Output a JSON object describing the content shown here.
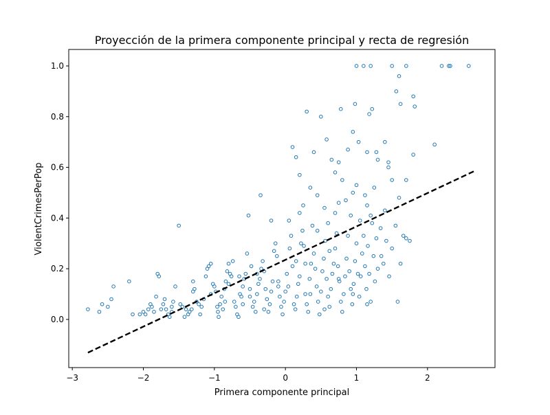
{
  "chart_data": {
    "type": "scatter",
    "title": "Proyección de la primera componente principal y recta de regresión",
    "xlabel": "Primera componente principal",
    "ylabel": "ViolentCrimesPerPop",
    "xlim": [
      -3.05,
      2.95
    ],
    "ylim": [
      -0.19,
      1.065
    ],
    "xticks": [
      -3,
      -2,
      -1,
      0,
      1,
      2
    ],
    "xtick_labels": [
      "−3",
      "−2",
      "−1",
      "0",
      "1",
      "2"
    ],
    "yticks": [
      0.0,
      0.2,
      0.4,
      0.6,
      0.8,
      1.0
    ],
    "ytick_labels": [
      "0.0",
      "0.2",
      "0.4",
      "0.6",
      "0.8",
      "1.0"
    ],
    "grid": false,
    "legend": "none",
    "colors": {
      "points": "#1f77b4",
      "regression_line": "#000000"
    },
    "series": [
      {
        "kind": "scatter",
        "marker": "hollow-circle",
        "points": [
          [
            -2.78,
            0.04
          ],
          [
            -2.62,
            0.03
          ],
          [
            -2.58,
            0.06
          ],
          [
            -2.5,
            0.05
          ],
          [
            -2.45,
            0.08
          ],
          [
            -2.42,
            0.13
          ],
          [
            -2.2,
            0.15
          ],
          [
            -2.15,
            0.02
          ],
          [
            -2.05,
            0.02
          ],
          [
            -2.0,
            0.03
          ],
          [
            -1.97,
            0.02
          ],
          [
            -1.93,
            0.04
          ],
          [
            -1.9,
            0.06
          ],
          [
            -1.88,
            0.05
          ],
          [
            -1.85,
            0.03
          ],
          [
            -1.82,
            0.09
          ],
          [
            -1.8,
            0.18
          ],
          [
            -1.78,
            0.17
          ],
          [
            -1.75,
            0.04
          ],
          [
            -1.72,
            0.06
          ],
          [
            -1.7,
            0.08
          ],
          [
            -1.68,
            0.04
          ],
          [
            -1.65,
            0.02
          ],
          [
            -1.63,
            0.01
          ],
          [
            -1.6,
            0.03
          ],
          [
            -1.58,
            0.07
          ],
          [
            -1.55,
            0.13
          ],
          [
            -1.5,
            0.37
          ],
          [
            -1.48,
            0.06
          ],
          [
            -1.45,
            0.05
          ],
          [
            -1.42,
            0.01
          ],
          [
            -1.4,
            0.04
          ],
          [
            -1.37,
            0.02
          ],
          [
            -1.35,
            0.03
          ],
          [
            -1.32,
            0.04
          ],
          [
            -1.3,
            0.11
          ],
          [
            -1.28,
            0.12
          ],
          [
            -1.25,
            0.07
          ],
          [
            -1.22,
            0.06
          ],
          [
            -1.2,
            0.02
          ],
          [
            -1.18,
            0.05
          ],
          [
            -1.15,
            0.08
          ],
          [
            -1.12,
            0.17
          ],
          [
            -1.1,
            0.2
          ],
          [
            -1.08,
            0.21
          ],
          [
            -1.05,
            0.22
          ],
          [
            -1.02,
            0.14
          ],
          [
            -1.0,
            0.13
          ],
          [
            -0.98,
            0.11
          ],
          [
            -0.96,
            0.05
          ],
          [
            -0.94,
            0.01
          ],
          [
            -0.92,
            0.06
          ],
          [
            -0.9,
            0.09
          ],
          [
            -0.88,
            0.04
          ],
          [
            -0.86,
            0.12
          ],
          [
            -0.84,
            0.15
          ],
          [
            -0.82,
            0.19
          ],
          [
            -0.8,
            0.22
          ],
          [
            -0.78,
            0.18
          ],
          [
            -0.76,
            0.17
          ],
          [
            -0.74,
            0.23
          ],
          [
            -0.72,
            0.07
          ],
          [
            -0.7,
            0.05
          ],
          [
            -0.68,
            0.02
          ],
          [
            -0.66,
            0.01
          ],
          [
            -0.64,
            0.1
          ],
          [
            -0.62,
            0.09
          ],
          [
            -0.6,
            0.13
          ],
          [
            -0.58,
            0.16
          ],
          [
            -0.56,
            0.18
          ],
          [
            -0.54,
            0.26
          ],
          [
            -0.52,
            0.41
          ],
          [
            -0.5,
            0.12
          ],
          [
            -0.48,
            0.21
          ],
          [
            -0.46,
            0.05
          ],
          [
            -0.44,
            0.07
          ],
          [
            -0.42,
            0.03
          ],
          [
            -0.4,
            0.1
          ],
          [
            -0.38,
            0.14
          ],
          [
            -0.36,
            0.16
          ],
          [
            -0.34,
            0.2
          ],
          [
            -0.32,
            0.23
          ],
          [
            -0.3,
            0.19
          ],
          [
            -0.28,
            0.12
          ],
          [
            -0.26,
            0.08
          ],
          [
            -0.24,
            0.03
          ],
          [
            -0.22,
            0.06
          ],
          [
            -0.2,
            0.11
          ],
          [
            -0.18,
            0.15
          ],
          [
            -0.16,
            0.27
          ],
          [
            -0.14,
            0.3
          ],
          [
            -0.12,
            0.25
          ],
          [
            -0.1,
            0.15
          ],
          [
            -0.08,
            0.09
          ],
          [
            -0.06,
            0.05
          ],
          [
            -0.04,
            0.02
          ],
          [
            -0.02,
            0.07
          ],
          [
            0.0,
            0.11
          ],
          [
            0.02,
            0.18
          ],
          [
            0.04,
            0.13
          ],
          [
            0.06,
            0.28
          ],
          [
            0.08,
            0.33
          ],
          [
            0.1,
            0.21
          ],
          [
            0.12,
            0.06
          ],
          [
            0.14,
            0.04
          ],
          [
            0.16,
            0.09
          ],
          [
            0.18,
            0.14
          ],
          [
            0.2,
            0.17
          ],
          [
            0.22,
            0.3
          ],
          [
            0.24,
            0.35
          ],
          [
            0.26,
            0.29
          ],
          [
            0.28,
            0.1
          ],
          [
            0.3,
            0.06
          ],
          [
            0.32,
            0.03
          ],
          [
            0.34,
            0.16
          ],
          [
            0.36,
            0.22
          ],
          [
            0.38,
            0.37
          ],
          [
            0.4,
            0.26
          ],
          [
            0.42,
            0.2
          ],
          [
            0.44,
            0.13
          ],
          [
            0.46,
            0.07
          ],
          [
            0.48,
            0.02
          ],
          [
            0.5,
            0.11
          ],
          [
            0.52,
            0.19
          ],
          [
            0.54,
            0.24
          ],
          [
            0.56,
            0.31
          ],
          [
            0.58,
            0.16
          ],
          [
            0.6,
            0.09
          ],
          [
            0.62,
            0.05
          ],
          [
            0.64,
            0.12
          ],
          [
            0.66,
            0.18
          ],
          [
            0.68,
            0.22
          ],
          [
            0.7,
            0.28
          ],
          [
            0.72,
            0.34
          ],
          [
            0.74,
            0.21
          ],
          [
            0.76,
            0.15
          ],
          [
            0.78,
            0.07
          ],
          [
            0.8,
            0.03
          ],
          [
            0.82,
            0.1
          ],
          [
            0.84,
            0.17
          ],
          [
            0.86,
            0.24
          ],
          [
            0.88,
            0.33
          ],
          [
            0.9,
            0.19
          ],
          [
            0.92,
            0.12
          ],
          [
            0.94,
            0.06
          ],
          [
            0.96,
            0.14
          ],
          [
            0.98,
            0.23
          ],
          [
            1.0,
            0.3
          ],
          [
            1.02,
            0.18
          ],
          [
            1.04,
            0.09
          ],
          [
            1.06,
            0.17
          ],
          [
            1.08,
            0.26
          ],
          [
            1.1,
            0.33
          ],
          [
            1.12,
            0.21
          ],
          [
            1.14,
            0.12
          ],
          [
            1.16,
            0.29
          ],
          [
            1.18,
            0.18
          ],
          [
            1.2,
            0.07
          ],
          [
            1.22,
            0.38
          ],
          [
            1.24,
            0.25
          ],
          [
            1.26,
            0.15
          ],
          [
            1.28,
            0.32
          ],
          [
            1.3,
            0.2
          ],
          [
            1.34,
            0.36
          ],
          [
            1.38,
            0.22
          ],
          [
            1.42,
            0.31
          ],
          [
            1.46,
            0.17
          ],
          [
            1.5,
            0.28
          ],
          [
            1.55,
            0.37
          ],
          [
            1.58,
            0.07
          ],
          [
            1.62,
            0.22
          ],
          [
            1.66,
            0.33
          ],
          [
            1.7,
            0.32
          ],
          [
            1.75,
            0.31
          ],
          [
            -0.8,
            0.14
          ],
          [
            -0.5,
            0.09
          ],
          [
            -0.3,
            0.04
          ],
          [
            -0.1,
            0.13
          ],
          [
            0.15,
            0.23
          ],
          [
            0.35,
            0.1
          ],
          [
            0.55,
            0.04
          ],
          [
            0.75,
            0.16
          ],
          [
            0.95,
            0.1
          ],
          [
            1.15,
            0.06
          ],
          [
            1.35,
            0.25
          ],
          [
            -1.6,
            0.05
          ],
          [
            -1.3,
            0.15
          ],
          [
            -0.95,
            0.03
          ],
          [
            -0.6,
            0.06
          ],
          [
            -0.4,
            0.18
          ],
          [
            0.05,
            0.39
          ],
          [
            0.2,
            0.42
          ],
          [
            0.25,
            0.45
          ],
          [
            0.35,
            0.52
          ],
          [
            0.45,
            0.49
          ],
          [
            0.55,
            0.44
          ],
          [
            0.6,
            0.38
          ],
          [
            0.7,
            0.42
          ],
          [
            0.75,
            0.46
          ],
          [
            0.8,
            0.55
          ],
          [
            0.85,
            0.47
          ],
          [
            0.92,
            0.41
          ],
          [
            0.95,
            0.5
          ],
          [
            1.0,
            0.53
          ],
          [
            1.05,
            0.39
          ],
          [
            1.15,
            0.45
          ],
          [
            1.2,
            0.41
          ],
          [
            1.25,
            0.52
          ],
          [
            1.3,
            0.63
          ],
          [
            1.4,
            0.43
          ],
          [
            1.45,
            0.6
          ],
          [
            1.5,
            0.55
          ],
          [
            1.6,
            0.48
          ],
          [
            1.7,
            0.55
          ],
          [
            1.8,
            0.65
          ],
          [
            0.1,
            0.68
          ],
          [
            0.15,
            0.64
          ],
          [
            0.2,
            0.57
          ],
          [
            0.3,
            0.82
          ],
          [
            0.4,
            0.66
          ],
          [
            0.5,
            0.8
          ],
          [
            0.58,
            0.71
          ],
          [
            0.7,
            0.58
          ],
          [
            0.75,
            0.62
          ],
          [
            0.78,
            0.83
          ],
          [
            0.88,
            0.67
          ],
          [
            0.95,
            0.74
          ],
          [
            0.98,
            0.85
          ],
          [
            1.0,
            1.0
          ],
          [
            1.03,
            0.7
          ],
          [
            1.1,
            1.0
          ],
          [
            1.15,
            0.66
          ],
          [
            1.18,
            0.81
          ],
          [
            1.2,
            1.0
          ],
          [
            1.22,
            0.83
          ],
          [
            1.28,
            0.66
          ],
          [
            1.45,
            0.62
          ],
          [
            1.5,
            1.0
          ],
          [
            1.56,
            0.9
          ],
          [
            1.6,
            0.96
          ],
          [
            1.62,
            0.85
          ],
          [
            1.7,
            1.0
          ],
          [
            1.8,
            0.88
          ],
          [
            1.82,
            0.84
          ],
          [
            2.1,
            0.69
          ],
          [
            2.2,
            1.0
          ],
          [
            2.3,
            1.0
          ],
          [
            2.32,
            1.0
          ],
          [
            2.58,
            1.0
          ],
          [
            1.4,
            0.7
          ],
          [
            0.45,
            0.35
          ],
          [
            0.62,
            0.27
          ],
          [
            -0.2,
            0.39
          ],
          [
            -0.35,
            0.49
          ],
          [
            0.65,
            0.63
          ],
          [
            1.12,
            0.49
          ],
          [
            0.28,
            0.22
          ],
          [
            -0.65,
            0.17
          ],
          [
            -1.05,
            0.1
          ],
          [
            -0.85,
            0.07
          ]
        ]
      },
      {
        "kind": "line",
        "style": "dashed",
        "x": [
          -2.78,
          2.68
        ],
        "y": [
          -0.131,
          0.588
        ]
      }
    ]
  }
}
